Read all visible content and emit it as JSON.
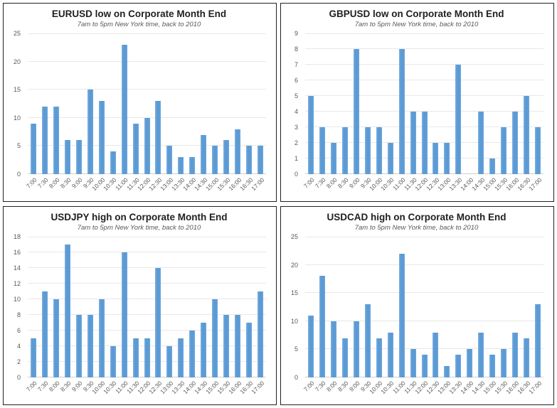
{
  "colors": {
    "bar_fill": "#5b9bd5",
    "bar_edge_highlight": "#82b1e0",
    "gridline": "#e8e8e8",
    "baseline": "#cfcfcf",
    "tick_label": "#595959",
    "title_text": "#1f1f1f",
    "subtitle_text": "#595959",
    "panel_border": "#212121",
    "background": "#ffffff"
  },
  "chart_data": [
    {
      "type": "bar",
      "title": "EURUSD low on Corporate Month End",
      "subtitle": "7am to 5pm New York time, back to 2010",
      "categories": [
        "7:00",
        "7:30",
        "8:00",
        "8:30",
        "9:00",
        "9:30",
        "10:00",
        "10:30",
        "11:00",
        "11:30",
        "12:00",
        "12:30",
        "13:00",
        "13:30",
        "14:00",
        "14:30",
        "15:00",
        "15:30",
        "16:00",
        "16:30",
        "17:00"
      ],
      "values": [
        9,
        12,
        12,
        6,
        6,
        15,
        13,
        4,
        23,
        9,
        10,
        13,
        5,
        3,
        3,
        7,
        5,
        6,
        8,
        5,
        5
      ],
      "xlabel": "",
      "ylabel": "",
      "ylim": [
        0,
        25
      ],
      "ytick_step": 5,
      "grid": "horizontal",
      "legend": "none"
    },
    {
      "type": "bar",
      "title": "GBPUSD low on Corporate Month End",
      "subtitle": "7am to 5pm New York time, back to 2010",
      "categories": [
        "7:00",
        "7:30",
        "8:00",
        "8:30",
        "9:00",
        "9:30",
        "10:00",
        "10:30",
        "11:00",
        "11:30",
        "12:00",
        "12:30",
        "13:00",
        "13:30",
        "14:00",
        "14:30",
        "15:00",
        "15:30",
        "16:00",
        "16:30",
        "17:00"
      ],
      "values": [
        5,
        3,
        2,
        3,
        8,
        3,
        3,
        2,
        8,
        4,
        4,
        2,
        2,
        7,
        0,
        4,
        1,
        3,
        4,
        5,
        3
      ],
      "xlabel": "",
      "ylabel": "",
      "ylim": [
        0,
        9
      ],
      "ytick_step": 1,
      "grid": "horizontal",
      "legend": "none"
    },
    {
      "type": "bar",
      "title": "USDJPY high on Corporate Month End",
      "subtitle": "7am to 5pm New York time, back to 2010",
      "categories": [
        "7:00",
        "7:30",
        "8:00",
        "8:30",
        "9:00",
        "9:30",
        "10:00",
        "10:30",
        "11:00",
        "11:30",
        "12:00",
        "12:30",
        "13:00",
        "13:30",
        "14:00",
        "14:30",
        "15:00",
        "15:30",
        "16:00",
        "16:30",
        "17:00"
      ],
      "values": [
        5,
        11,
        10,
        17,
        8,
        8,
        10,
        4,
        16,
        5,
        5,
        14,
        4,
        5,
        6,
        7,
        10,
        8,
        8,
        7,
        11
      ],
      "xlabel": "",
      "ylabel": "",
      "ylim": [
        0,
        18
      ],
      "ytick_step": 2,
      "grid": "horizontal",
      "legend": "none"
    },
    {
      "type": "bar",
      "title": "USDCAD high on Corporate Month End",
      "subtitle": "7am to 5pm New York time, back to 2010",
      "categories": [
        "7:00",
        "7:30",
        "8:00",
        "8:30",
        "9:00",
        "9:30",
        "10:00",
        "10:30",
        "11:00",
        "11:30",
        "12:00",
        "12:30",
        "13:00",
        "13:30",
        "14:00",
        "14:30",
        "15:00",
        "15:30",
        "16:00",
        "16:30",
        "17:00"
      ],
      "values": [
        11,
        18,
        10,
        7,
        10,
        13,
        7,
        8,
        22,
        5,
        4,
        8,
        2,
        4,
        5,
        8,
        4,
        5,
        8,
        7,
        13
      ],
      "xlabel": "",
      "ylabel": "",
      "ylim": [
        0,
        25
      ],
      "ytick_step": 5,
      "grid": "horizontal",
      "legend": "none"
    }
  ]
}
